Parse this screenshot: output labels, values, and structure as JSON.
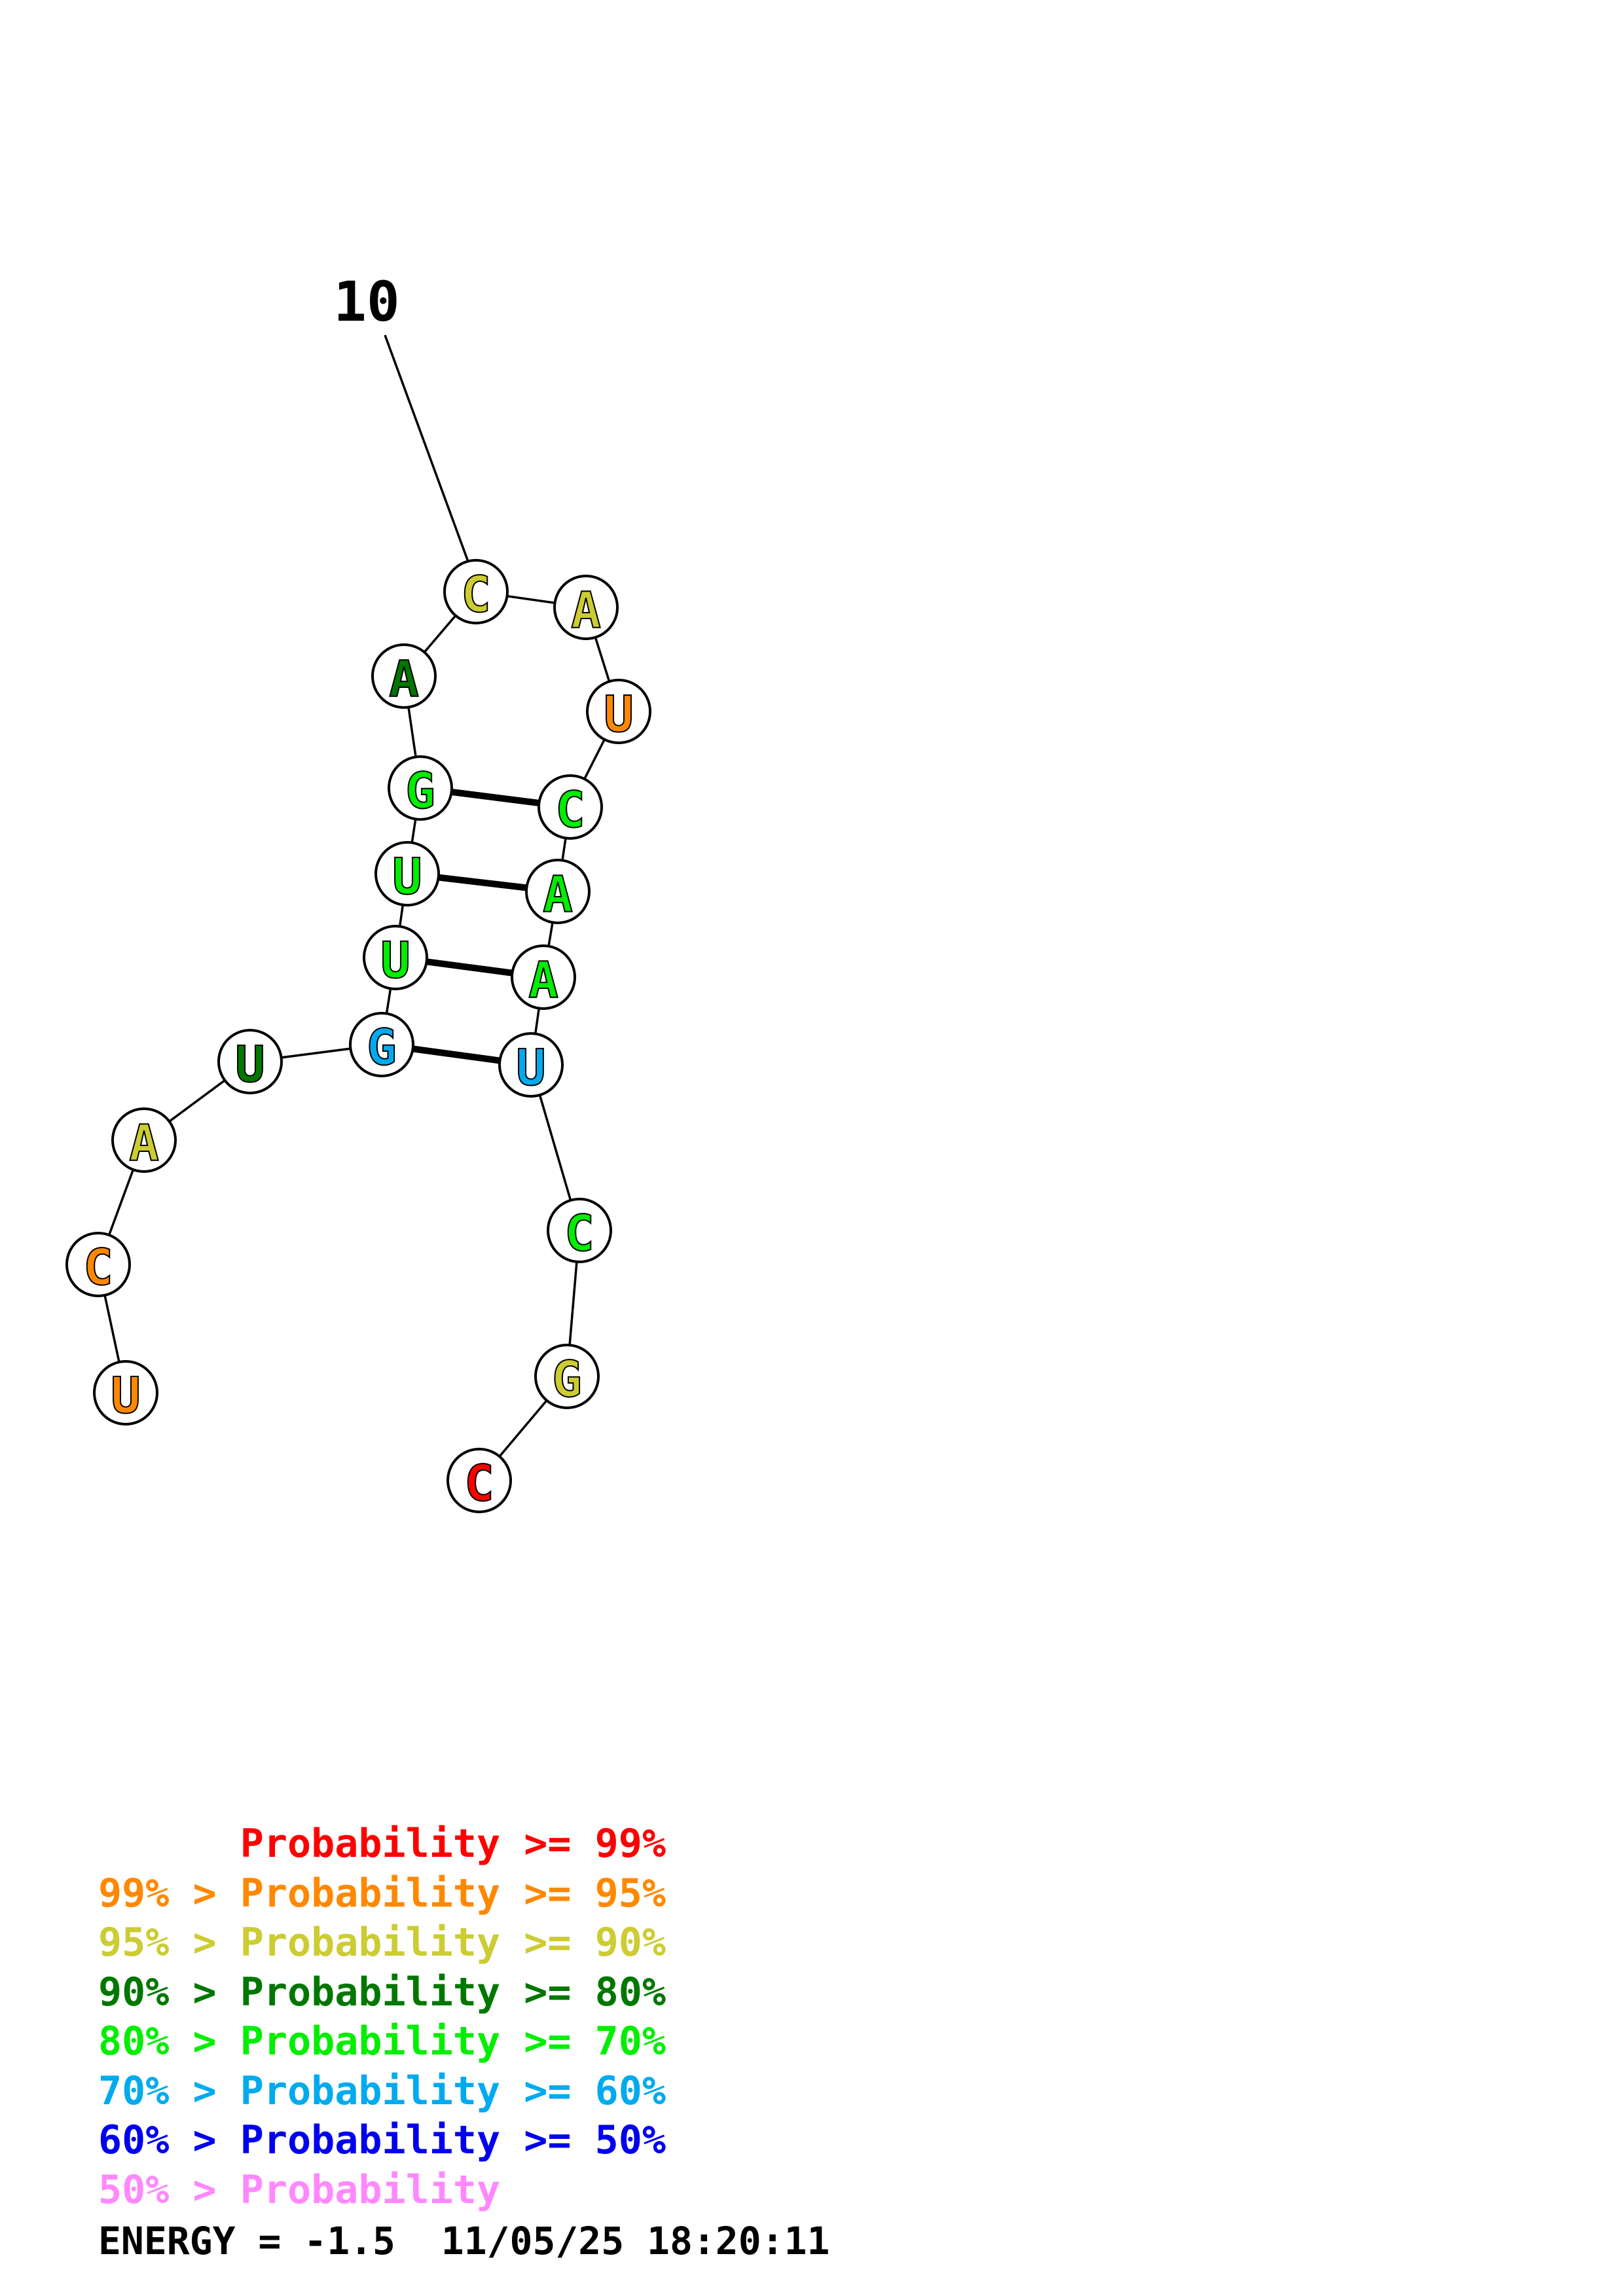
{
  "structure": {
    "tick_label": "10",
    "nucleotides": [
      {
        "letter": "U",
        "color": "#ff8800"
      },
      {
        "letter": "C",
        "color": "#ff8800"
      },
      {
        "letter": "A",
        "color": "#cccc33"
      },
      {
        "letter": "U",
        "color": "#007700"
      },
      {
        "letter": "G",
        "color": "#00aaee"
      },
      {
        "letter": "U",
        "color": "#00ee00"
      },
      {
        "letter": "U",
        "color": "#00ee00"
      },
      {
        "letter": "G",
        "color": "#00ee00"
      },
      {
        "letter": "A",
        "color": "#007700"
      },
      {
        "letter": "C",
        "color": "#cccc33"
      },
      {
        "letter": "A",
        "color": "#cccc33"
      },
      {
        "letter": "U",
        "color": "#ff8800"
      },
      {
        "letter": "C",
        "color": "#00ee00"
      },
      {
        "letter": "A",
        "color": "#00ee00"
      },
      {
        "letter": "A",
        "color": "#00ee00"
      },
      {
        "letter": "U",
        "color": "#00aaee"
      },
      {
        "letter": "C",
        "color": "#00ee00"
      },
      {
        "letter": "G",
        "color": "#cccc33"
      },
      {
        "letter": "C",
        "color": "#ff0000"
      }
    ],
    "base_pairs": [
      [
        5,
        16
      ],
      [
        6,
        15
      ],
      [
        7,
        14
      ],
      [
        8,
        13
      ]
    ]
  },
  "legend": [
    {
      "prefix": "",
      "text": "Probability >= 99%",
      "color": "#ff0000"
    },
    {
      "prefix": "99% > ",
      "text": "Probability >= 95%",
      "color": "#ff8800"
    },
    {
      "prefix": "95% > ",
      "text": "Probability >= 90%",
      "color": "#cccc33"
    },
    {
      "prefix": "90% > ",
      "text": "Probability >= 80%",
      "color": "#007700"
    },
    {
      "prefix": "80% > ",
      "text": "Probability >= 70%",
      "color": "#00ee00"
    },
    {
      "prefix": "70% > ",
      "text": "Probability >= 60%",
      "color": "#00aaee"
    },
    {
      "prefix": "60% > ",
      "text": "Probability >= 50%",
      "color": "#0000ee"
    },
    {
      "prefix": "50% > ",
      "text": "Probability",
      "color": "#ff88ff"
    }
  ],
  "energy_line": "ENERGY = -1.5  11/05/25 18:20:11"
}
